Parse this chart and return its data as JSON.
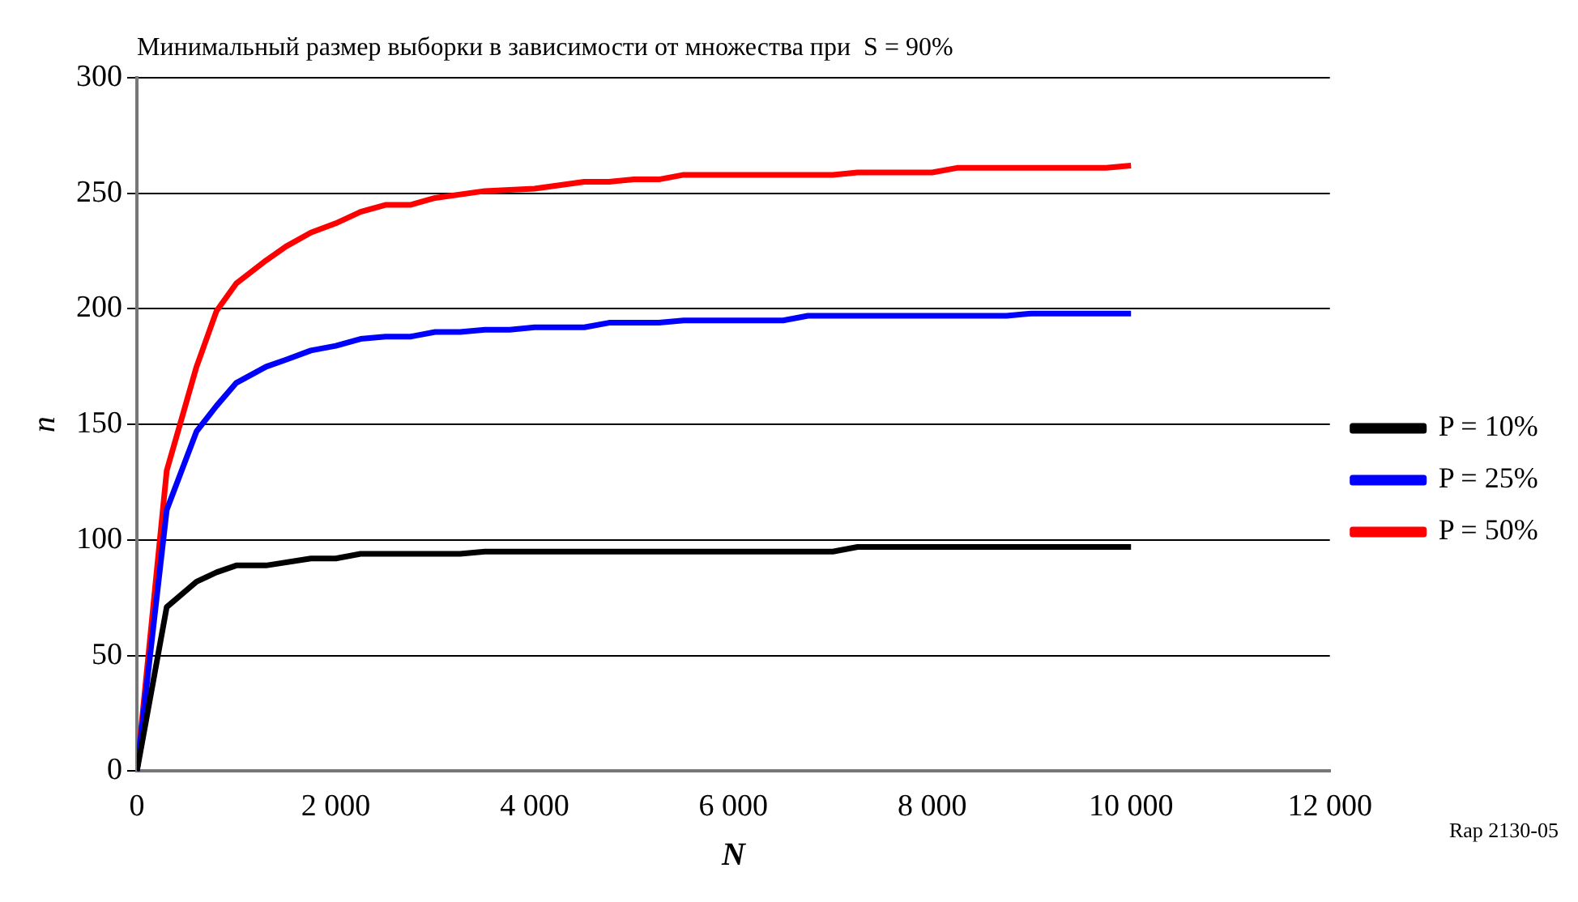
{
  "chart_data": {
    "type": "line",
    "title": "Минимальный размер выборки в зависимости от множества при  S = 90%",
    "xlabel": "N",
    "ylabel": "n",
    "xlim": [
      0,
      12000
    ],
    "xticks": [
      0,
      {
        "value": 2000,
        "label": "2 000"
      },
      {
        "value": 4000,
        "label": "4 000"
      },
      {
        "value": 6000,
        "label": "6 000"
      },
      {
        "value": 8000,
        "label": "8 000"
      },
      {
        "value": 10000,
        "label": "10 000"
      },
      {
        "value": 12000,
        "label": "12 000"
      }
    ],
    "ylim": [
      0,
      300
    ],
    "yticks": [
      0,
      50,
      100,
      150,
      200,
      250,
      300
    ],
    "grid": "y",
    "legend": "right",
    "marker": "none",
    "line_style": "solid",
    "series": [
      {
        "name": "P = 10%",
        "color": "#000000",
        "x": [
          0,
          300,
          600,
          800,
          1000,
          1300,
          1750,
          2000,
          2250,
          3250,
          3500,
          7000,
          7250,
          10000
        ],
        "values": [
          0,
          71,
          82,
          86,
          89,
          89,
          92,
          92,
          94,
          94,
          95,
          95,
          97,
          97
        ]
      },
      {
        "name": "P = 25%",
        "color": "#0000ff",
        "x": [
          0,
          300,
          600,
          800,
          1000,
          1300,
          1500,
          1750,
          2000,
          2250,
          2500,
          2750,
          3000,
          3250,
          3500,
          3750,
          4000,
          4500,
          4750,
          5250,
          5500,
          6500,
          6750,
          8750,
          9000,
          10000
        ],
        "values": [
          0,
          113,
          147,
          158,
          168,
          175,
          178,
          182,
          184,
          187,
          188,
          188,
          190,
          190,
          191,
          191,
          192,
          192,
          194,
          194,
          195,
          195,
          197,
          197,
          198,
          198
        ]
      },
      {
        "name": "P = 50%",
        "color": "#ff0000",
        "x": [
          0,
          300,
          600,
          800,
          1000,
          1300,
          1500,
          1750,
          2000,
          2250,
          2500,
          2750,
          3000,
          3500,
          4000,
          4500,
          4750,
          5000,
          5250,
          5500,
          7000,
          7250,
          8000,
          8250,
          9750,
          10000
        ],
        "values": [
          0,
          130,
          175,
          199,
          211,
          221,
          227,
          233,
          237,
          242,
          245,
          245,
          248,
          251,
          252,
          255,
          255,
          256,
          256,
          258,
          258,
          259,
          259,
          261,
          261,
          262
        ]
      }
    ],
    "annotations": [
      "Rap 2130-05"
    ]
  }
}
